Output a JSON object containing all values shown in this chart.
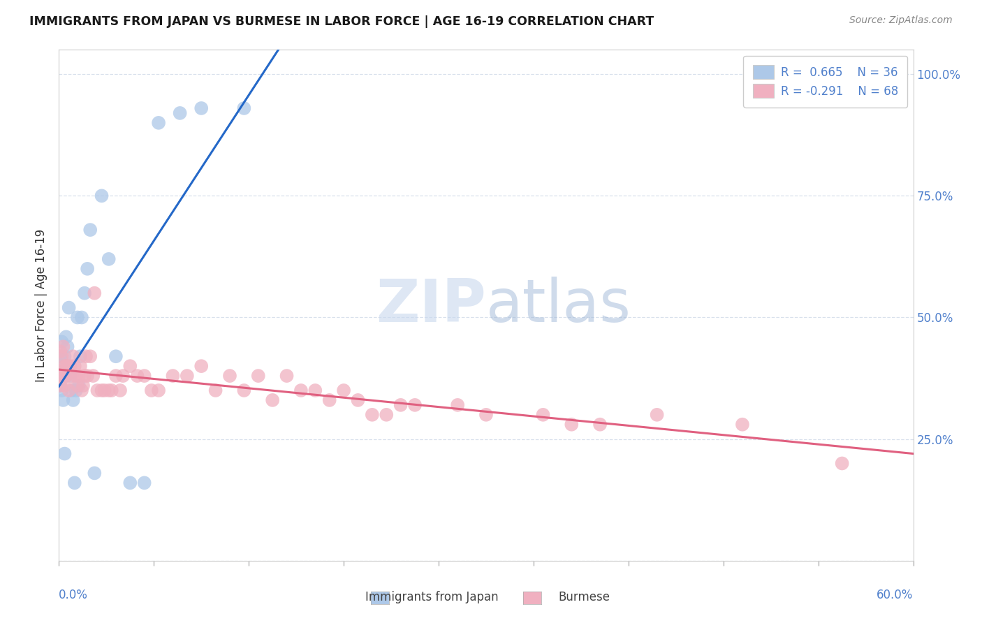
{
  "title": "IMMIGRANTS FROM JAPAN VS BURMESE IN LABOR FORCE | AGE 16-19 CORRELATION CHART",
  "source": "Source: ZipAtlas.com",
  "ylabel_label": "In Labor Force | Age 16-19",
  "legend_japan": "R =  0.665    N = 36",
  "legend_burmese": "R = -0.291    N = 68",
  "legend_japan_label": "Immigrants from Japan",
  "legend_burmese_label": "Burmese",
  "japan_color": "#adc8e8",
  "japan_line_color": "#2468c8",
  "burmese_color": "#f0b0c0",
  "burmese_line_color": "#e06080",
  "japan_R": 0.665,
  "burmese_R": -0.291,
  "xmin": 0.0,
  "xmax": 0.6,
  "ymin": 0.0,
  "ymax": 1.05,
  "japan_x": [
    0.001,
    0.001,
    0.001,
    0.002,
    0.002,
    0.002,
    0.003,
    0.003,
    0.004,
    0.004,
    0.005,
    0.005,
    0.006,
    0.007,
    0.008,
    0.009,
    0.01,
    0.011,
    0.012,
    0.013,
    0.014,
    0.015,
    0.016,
    0.018,
    0.02,
    0.022,
    0.025,
    0.03,
    0.035,
    0.04,
    0.05,
    0.06,
    0.07,
    0.085,
    0.1,
    0.13
  ],
  "japan_y": [
    0.38,
    0.42,
    0.36,
    0.4,
    0.45,
    0.35,
    0.38,
    0.33,
    0.42,
    0.22,
    0.38,
    0.46,
    0.44,
    0.52,
    0.38,
    0.35,
    0.33,
    0.16,
    0.35,
    0.5,
    0.36,
    0.42,
    0.5,
    0.55,
    0.6,
    0.68,
    0.18,
    0.75,
    0.62,
    0.42,
    0.16,
    0.16,
    0.9,
    0.92,
    0.93,
    0.93
  ],
  "burmese_x": [
    0.001,
    0.001,
    0.001,
    0.002,
    0.002,
    0.003,
    0.003,
    0.004,
    0.004,
    0.005,
    0.005,
    0.006,
    0.007,
    0.008,
    0.009,
    0.01,
    0.011,
    0.012,
    0.013,
    0.014,
    0.015,
    0.016,
    0.017,
    0.018,
    0.019,
    0.02,
    0.022,
    0.024,
    0.025,
    0.027,
    0.03,
    0.032,
    0.035,
    0.037,
    0.04,
    0.043,
    0.045,
    0.05,
    0.055,
    0.06,
    0.065,
    0.07,
    0.08,
    0.09,
    0.1,
    0.11,
    0.12,
    0.13,
    0.14,
    0.15,
    0.16,
    0.17,
    0.18,
    0.19,
    0.2,
    0.21,
    0.22,
    0.23,
    0.24,
    0.25,
    0.28,
    0.3,
    0.34,
    0.36,
    0.38,
    0.42,
    0.48,
    0.55
  ],
  "burmese_y": [
    0.43,
    0.39,
    0.36,
    0.42,
    0.38,
    0.44,
    0.38,
    0.4,
    0.36,
    0.4,
    0.38,
    0.4,
    0.35,
    0.4,
    0.38,
    0.42,
    0.4,
    0.38,
    0.36,
    0.38,
    0.4,
    0.35,
    0.36,
    0.38,
    0.42,
    0.38,
    0.42,
    0.38,
    0.55,
    0.35,
    0.35,
    0.35,
    0.35,
    0.35,
    0.38,
    0.35,
    0.38,
    0.4,
    0.38,
    0.38,
    0.35,
    0.35,
    0.38,
    0.38,
    0.4,
    0.35,
    0.38,
    0.35,
    0.38,
    0.33,
    0.38,
    0.35,
    0.35,
    0.33,
    0.35,
    0.33,
    0.3,
    0.3,
    0.32,
    0.32,
    0.32,
    0.3,
    0.3,
    0.28,
    0.28,
    0.3,
    0.28,
    0.2
  ],
  "watermark_zip": "ZIP",
  "watermark_atlas": "atlas",
  "grid_color": "#d8e0ec",
  "tick_color": "#5080cc",
  "title_color": "#1a1a1a",
  "ylabel_color": "#333333",
  "source_color": "#888888"
}
